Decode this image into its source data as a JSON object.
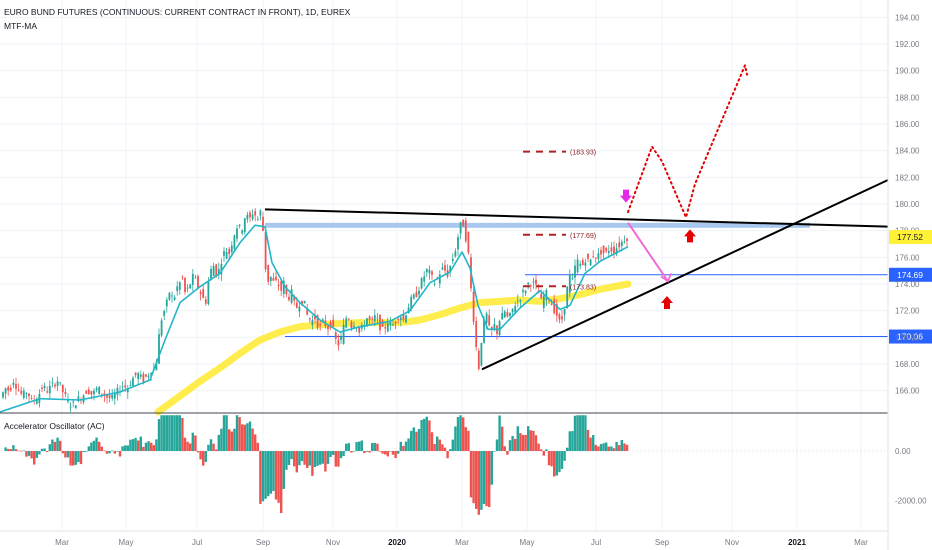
{
  "header": {
    "title": "EURO BUND FUTURES (CONTINUOUS: CURRENT CONTRACT IN FRONT), 1D, EUREX",
    "indicator": "MTF-MA",
    "oscillator": "Accelerator Oscillator (AC)"
  },
  "chart_data": {
    "type": "candlestick",
    "y_axis": {
      "range": [
        164.4,
        195.3
      ],
      "ticks": [
        "194.00",
        "192.00",
        "190.00",
        "188.00",
        "186.00",
        "184.00",
        "182.00",
        "180.00",
        "178.00",
        "176.00",
        "174.00",
        "172.00",
        "170.00",
        "168.00",
        "166.00"
      ]
    },
    "osc_axis": {
      "range": [
        -3200,
        1500
      ],
      "ticks": [
        "0.00",
        "-2000.00"
      ]
    },
    "x_axis": {
      "ticks": [
        {
          "label": "Mar",
          "bold": false
        },
        {
          "label": "May",
          "bold": false
        },
        {
          "label": "Jul",
          "bold": false
        },
        {
          "label": "Sep",
          "bold": false
        },
        {
          "label": "Nov",
          "bold": false
        },
        {
          "label": "2020",
          "bold": true
        },
        {
          "label": "Mar",
          "bold": false
        },
        {
          "label": "May",
          "bold": false
        },
        {
          "label": "Jul",
          "bold": false
        },
        {
          "label": "Sep",
          "bold": false
        },
        {
          "label": "Nov",
          "bold": false
        },
        {
          "label": "2021",
          "bold": true
        },
        {
          "label": "Mar",
          "bold": false
        }
      ]
    },
    "price_path": [
      [
        0,
        165.2
      ],
      [
        4,
        165.6
      ],
      [
        8,
        166.2
      ],
      [
        12,
        166.0
      ],
      [
        16,
        166.8
      ],
      [
        20,
        166.2
      ],
      [
        25,
        165.6
      ],
      [
        30,
        166.0
      ],
      [
        34,
        165.2
      ],
      [
        40,
        165.5
      ],
      [
        45,
        166.3
      ],
      [
        50,
        166.0
      ],
      [
        55,
        166.4
      ],
      [
        60,
        166.8
      ],
      [
        65,
        166.0
      ],
      [
        70,
        165.2
      ],
      [
        75,
        164.9
      ],
      [
        80,
        165.3
      ],
      [
        85,
        165.6
      ],
      [
        90,
        166.1
      ],
      [
        95,
        165.7
      ],
      [
        100,
        166.2
      ],
      [
        105,
        165.8
      ],
      [
        110,
        165.5
      ],
      [
        115,
        165.4
      ],
      [
        120,
        165.9
      ],
      [
        125,
        166.4
      ],
      [
        130,
        166.2
      ],
      [
        135,
        166.9
      ],
      [
        140,
        167.3
      ],
      [
        145,
        166.8
      ],
      [
        150,
        167.1
      ],
      [
        155,
        167.8
      ],
      [
        158,
        167.4
      ],
      [
        160,
        169.3
      ],
      [
        165,
        171.8
      ],
      [
        168,
        172.1
      ],
      [
        172,
        173.4
      ],
      [
        176,
        172.8
      ],
      [
        180,
        173.8
      ],
      [
        185,
        174.4
      ],
      [
        188,
        173.2
      ],
      [
        192,
        173.9
      ],
      [
        196,
        174.6
      ],
      [
        200,
        173.9
      ],
      [
        204,
        173.2
      ],
      [
        208,
        172.5
      ],
      [
        212,
        174.8
      ],
      [
        216,
        175.4
      ],
      [
        220,
        174.6
      ],
      [
        224,
        175.8
      ],
      [
        228,
        176.6
      ],
      [
        232,
        176.3
      ],
      [
        236,
        177.6
      ],
      [
        240,
        178.4
      ],
      [
        244,
        178.0
      ],
      [
        248,
        179.2
      ],
      [
        252,
        178.8
      ],
      [
        256,
        179.5
      ],
      [
        260,
        178.8
      ],
      [
        263,
        179.4
      ],
      [
        266,
        177.8
      ],
      [
        268,
        175.3
      ],
      [
        271,
        174.2
      ],
      [
        274,
        174.6
      ],
      [
        277,
        173.9
      ],
      [
        280,
        174.3
      ],
      [
        283,
        173.3
      ],
      [
        286,
        174.2
      ],
      [
        290,
        172.8
      ],
      [
        294,
        173.4
      ],
      [
        298,
        172.1
      ],
      [
        302,
        172.6
      ],
      [
        306,
        172.8
      ],
      [
        310,
        171.6
      ],
      [
        314,
        171.2
      ],
      [
        318,
        171.5
      ],
      [
        322,
        170.6
      ],
      [
        326,
        171.2
      ],
      [
        330,
        170.7
      ],
      [
        334,
        171.1
      ],
      [
        338,
        169.8
      ],
      [
        342,
        169.4
      ],
      [
        346,
        170.7
      ],
      [
        350,
        171.8
      ],
      [
        354,
        170.9
      ],
      [
        358,
        171.2
      ],
      [
        362,
        170.3
      ],
      [
        366,
        170.9
      ],
      [
        370,
        171.5
      ],
      [
        374,
        171.0
      ],
      [
        378,
        171.6
      ],
      [
        382,
        170.9
      ],
      [
        386,
        170.4
      ],
      [
        390,
        171.3
      ],
      [
        394,
        170.8
      ],
      [
        398,
        171.2
      ],
      [
        402,
        171.8
      ],
      [
        406,
        171.3
      ],
      [
        410,
        172.2
      ],
      [
        414,
        172.8
      ],
      [
        418,
        173.1
      ],
      [
        422,
        173.8
      ],
      [
        426,
        174.5
      ],
      [
        430,
        175.1
      ],
      [
        434,
        174.5
      ],
      [
        438,
        174.0
      ],
      [
        442,
        174.8
      ],
      [
        446,
        175.2
      ],
      [
        450,
        174.7
      ],
      [
        454,
        175.6
      ],
      [
        458,
        176.6
      ],
      [
        462,
        178.1
      ],
      [
        465,
        178.8
      ],
      [
        468,
        177.7
      ],
      [
        471,
        176.2
      ],
      [
        474,
        173.2
      ],
      [
        477,
        170.8
      ],
      [
        480,
        168.2
      ],
      [
        482,
        167.6
      ],
      [
        484,
        169.8
      ],
      [
        487,
        171.3
      ],
      [
        490,
        171.8
      ],
      [
        493,
        169.8
      ],
      [
        496,
        171.2
      ],
      [
        499,
        170.2
      ],
      [
        502,
        171.3
      ],
      [
        505,
        171.6
      ],
      [
        508,
        172.0
      ],
      [
        511,
        171.2
      ],
      [
        514,
        171.9
      ],
      [
        517,
        172.4
      ],
      [
        520,
        172.7
      ],
      [
        524,
        173.2
      ],
      [
        528,
        173.6
      ],
      [
        532,
        174.2
      ],
      [
        536,
        174.0
      ],
      [
        540,
        173.6
      ],
      [
        544,
        172.6
      ],
      [
        548,
        173.4
      ],
      [
        552,
        172.9
      ],
      [
        556,
        172.2
      ],
      [
        560,
        171.6
      ],
      [
        563,
        170.9
      ],
      [
        566,
        171.8
      ],
      [
        569,
        173.3
      ],
      [
        572,
        174.6
      ],
      [
        575,
        174.2
      ],
      [
        578,
        175.4
      ],
      [
        581,
        175.8
      ],
      [
        584,
        175.2
      ],
      [
        588,
        175.9
      ],
      [
        592,
        175.6
      ],
      [
        596,
        176.2
      ],
      [
        600,
        176.0
      ],
      [
        604,
        176.5
      ],
      [
        608,
        176.2
      ],
      [
        612,
        176.7
      ],
      [
        616,
        176.5
      ],
      [
        620,
        176.8
      ],
      [
        624,
        177.1
      ],
      [
        628,
        177.52
      ]
    ],
    "ma_fast": [
      [
        0,
        164.4
      ],
      [
        40,
        165.4
      ],
      [
        80,
        165.3
      ],
      [
        120,
        165.9
      ],
      [
        150,
        166.8
      ],
      [
        165,
        169.8
      ],
      [
        180,
        172.6
      ],
      [
        200,
        173.8
      ],
      [
        220,
        174.8
      ],
      [
        240,
        177.1
      ],
      [
        255,
        178.4
      ],
      [
        265,
        178.3
      ],
      [
        272,
        175.6
      ],
      [
        285,
        173.8
      ],
      [
        300,
        172.6
      ],
      [
        320,
        171.3
      ],
      [
        340,
        170.4
      ],
      [
        360,
        170.8
      ],
      [
        390,
        171.2
      ],
      [
        410,
        172.0
      ],
      [
        430,
        174.1
      ],
      [
        450,
        174.9
      ],
      [
        462,
        176.4
      ],
      [
        470,
        175.2
      ],
      [
        478,
        172.4
      ],
      [
        488,
        170.6
      ],
      [
        500,
        170.6
      ],
      [
        520,
        172.2
      ],
      [
        540,
        173.5
      ],
      [
        560,
        172.1
      ],
      [
        570,
        172.4
      ],
      [
        585,
        174.8
      ],
      [
        600,
        175.7
      ],
      [
        628,
        176.8
      ]
    ],
    "ma_slow": [
      [
        158,
        164.4
      ],
      [
        180,
        165.6
      ],
      [
        200,
        166.7
      ],
      [
        220,
        167.7
      ],
      [
        240,
        168.8
      ],
      [
        260,
        169.8
      ],
      [
        280,
        170.4
      ],
      [
        300,
        170.8
      ],
      [
        330,
        171.0
      ],
      [
        360,
        171.1
      ],
      [
        400,
        171.1
      ],
      [
        420,
        171.3
      ],
      [
        440,
        171.7
      ],
      [
        460,
        172.2
      ],
      [
        480,
        172.6
      ],
      [
        500,
        172.7
      ],
      [
        520,
        172.8
      ],
      [
        540,
        172.7
      ],
      [
        560,
        172.9
      ],
      [
        580,
        173.2
      ],
      [
        600,
        173.6
      ],
      [
        628,
        174.0
      ]
    ],
    "horizontal_levels": [
      {
        "price": 178.4,
        "from_x": 265,
        "to_x": 810,
        "style": "band"
      },
      {
        "price": 174.69,
        "label": "174.69",
        "from_x": 525,
        "to_x": 888
      },
      {
        "price": 170.06,
        "label": "170.06",
        "from_x": 285,
        "to_x": 888
      }
    ],
    "current_price": {
      "label": "177.52",
      "price": 177.52
    },
    "annotations": [
      {
        "label": "(183.93)",
        "price": 183.93,
        "x_start": 523,
        "x_end": 566
      },
      {
        "label": "(177.69)",
        "price": 177.69,
        "x_start": 523,
        "x_end": 566
      },
      {
        "label": "(173.83)",
        "price": 173.83,
        "x_start": 523,
        "x_end": 566
      }
    ],
    "trendlines": [
      {
        "name": "descending resistance",
        "points": [
          [
            265,
            179.6
          ],
          [
            888,
            178.3
          ]
        ]
      },
      {
        "name": "ascending support",
        "points": [
          [
            482,
            167.6
          ],
          [
            888,
            181.8
          ]
        ]
      }
    ],
    "projection_dotted": [
      [
        628,
        179.4
      ],
      [
        652,
        184.3
      ],
      [
        662,
        183.2
      ],
      [
        686,
        179.0
      ],
      [
        695,
        181.5
      ],
      [
        745,
        190.4
      ],
      [
        747,
        189.7
      ]
    ],
    "projection_solid_pink": [
      [
        628,
        178.6
      ],
      [
        668,
        174.2
      ]
    ],
    "arrows": [
      {
        "type": "down",
        "color": "#e629e6",
        "x": 626,
        "price": 180.4
      },
      {
        "type": "up",
        "color": "#e60000",
        "x": 690,
        "price": 177.8
      },
      {
        "type": "up",
        "color": "#e60000",
        "x": 667,
        "price": 172.8
      }
    ]
  },
  "colors": {
    "up": "#26a69a",
    "down": "#ef5350",
    "ma_fast": "#21b6c9",
    "ma_slow": "#ffeb3b",
    "trend": "#000000",
    "level": "#2962ff",
    "band": "#a9c8ef",
    "projection": "#e60000",
    "current_price_bg": "#fff135"
  }
}
